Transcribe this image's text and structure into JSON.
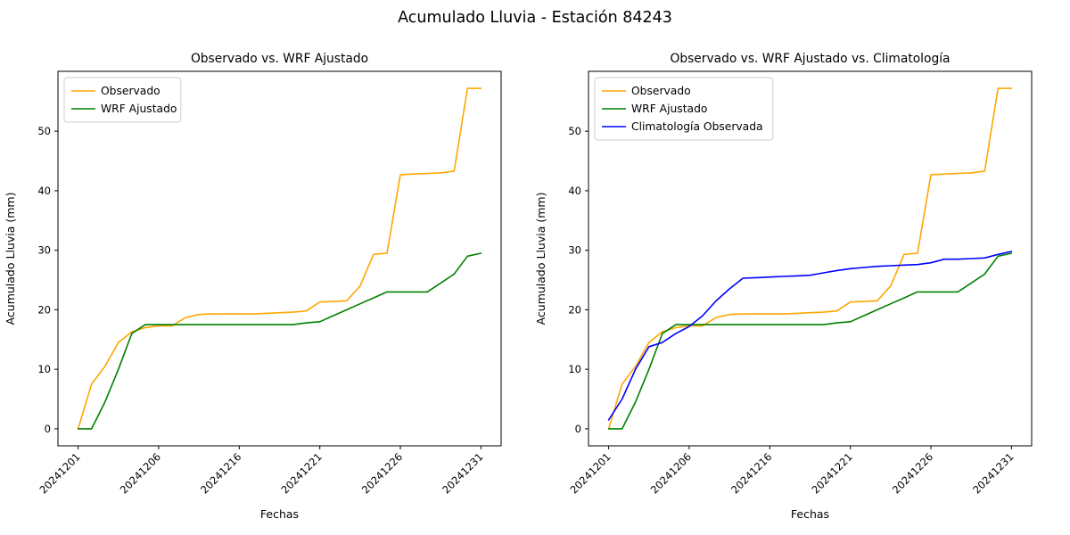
{
  "figure_title": "Acumulado Lluvia - Estación 84243",
  "chart_data": [
    {
      "type": "line",
      "title": "Observado vs. WRF Ajustado",
      "xlabel": "Fechas",
      "ylabel": "Acumulado Lluvia (mm)",
      "grid": false,
      "legend_position": "upper-left",
      "x_tick_labels": [
        "20241201",
        "20241206",
        "20241216",
        "20241221",
        "20241226",
        "20241231"
      ],
      "x_tick_positions": [
        0,
        6,
        12,
        18,
        24,
        30
      ],
      "y_ticks": [
        0,
        10,
        20,
        30,
        40,
        50
      ],
      "series": [
        {
          "name": "Observado",
          "color": "#FFA500",
          "values": [
            0,
            7.5,
            10.5,
            14.5,
            16.3,
            17.0,
            17.3,
            17.3,
            18.7,
            19.2,
            19.3,
            19.3,
            19.3,
            19.3,
            19.4,
            19.5,
            19.6,
            19.8,
            21.3,
            21.4,
            21.5,
            24.0,
            29.3,
            29.5,
            42.7,
            42.8,
            42.9,
            43.0,
            43.3,
            57.2,
            57.2
          ]
        },
        {
          "name": "WRF Ajustado",
          "color": "#008000",
          "values": [
            0,
            0,
            4.5,
            10.0,
            16.0,
            17.5,
            17.5,
            17.5,
            17.5,
            17.5,
            17.5,
            17.5,
            17.5,
            17.5,
            17.5,
            17.5,
            17.5,
            17.8,
            18.0,
            19.0,
            20.0,
            21.0,
            22.0,
            23.0,
            23.0,
            23.0,
            23.0,
            24.5,
            26.0,
            29.0,
            29.5
          ]
        }
      ]
    },
    {
      "type": "line",
      "title": "Observado vs. WRF Ajustado vs. Climatología",
      "xlabel": "Fechas",
      "ylabel": "Acumulado Lluvia (mm)",
      "grid": false,
      "legend_position": "upper-left",
      "x_tick_labels": [
        "20241201",
        "20241206",
        "20241216",
        "20241221",
        "20241226",
        "20241231"
      ],
      "x_tick_positions": [
        0,
        6,
        12,
        18,
        24,
        30
      ],
      "y_ticks": [
        0,
        10,
        20,
        30,
        40,
        50
      ],
      "series": [
        {
          "name": "Observado",
          "color": "#FFA500",
          "values": [
            0,
            7.5,
            10.5,
            14.5,
            16.3,
            17.0,
            17.3,
            17.3,
            18.7,
            19.2,
            19.3,
            19.3,
            19.3,
            19.3,
            19.4,
            19.5,
            19.6,
            19.8,
            21.3,
            21.4,
            21.5,
            24.0,
            29.3,
            29.5,
            42.7,
            42.8,
            42.9,
            43.0,
            43.3,
            57.2,
            57.2
          ]
        },
        {
          "name": "WRF Ajustado",
          "color": "#008000",
          "values": [
            0,
            0,
            4.5,
            10.0,
            16.0,
            17.5,
            17.5,
            17.5,
            17.5,
            17.5,
            17.5,
            17.5,
            17.5,
            17.5,
            17.5,
            17.5,
            17.5,
            17.8,
            18.0,
            19.0,
            20.0,
            21.0,
            22.0,
            23.0,
            23.0,
            23.0,
            23.0,
            24.5,
            26.0,
            29.0,
            29.5
          ]
        },
        {
          "name": "Climatología Observada",
          "color": "#0000FF",
          "values": [
            1.5,
            5.0,
            10.0,
            13.8,
            14.5,
            16.0,
            17.2,
            19.0,
            21.5,
            23.5,
            25.3,
            25.4,
            25.5,
            25.6,
            25.7,
            25.8,
            26.2,
            26.6,
            26.9,
            27.1,
            27.3,
            27.4,
            27.5,
            27.6,
            27.9,
            28.5,
            28.5,
            28.6,
            28.7,
            29.3,
            29.8
          ]
        }
      ]
    }
  ]
}
